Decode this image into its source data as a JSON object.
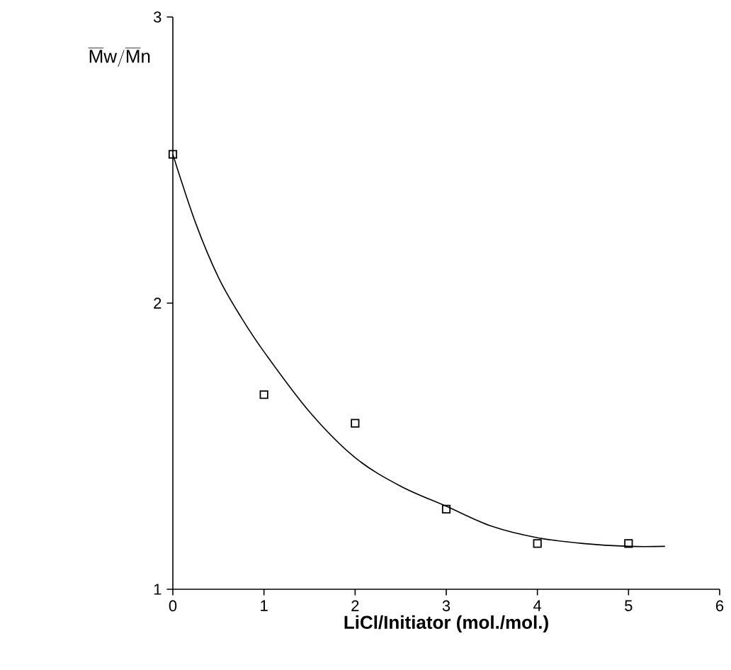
{
  "chart_data": {
    "type": "scatter",
    "xlabel": "LiCl/Initiator (mol./mol.)",
    "ylabel": "\\overline{\\mathrm{M}}\\mathrm{w}/\\overline{\\mathrm{M}}\\mathrm{n}",
    "xlim": [
      0,
      6
    ],
    "ylim": [
      1,
      3
    ],
    "xticks": [
      0,
      1,
      2,
      3,
      4,
      5,
      6
    ],
    "yticks": [
      1,
      2,
      3
    ],
    "grid": false,
    "series": [
      {
        "marker": "square",
        "color": "#000000",
        "x": [
          0,
          1,
          2,
          3,
          4,
          5
        ],
        "values": [
          2.52,
          1.68,
          1.58,
          1.28,
          1.16,
          1.16
        ]
      },
      {
        "type": "line",
        "marker": "none",
        "color": "#000000",
        "x": [
          0,
          0.25,
          0.5,
          0.75,
          1,
          1.5,
          2,
          2.5,
          3,
          3.5,
          4,
          4.5,
          5,
          5.4
        ],
        "values": [
          2.52,
          2.28,
          2.09,
          1.95,
          1.83,
          1.62,
          1.46,
          1.36,
          1.29,
          1.22,
          1.18,
          1.16,
          1.15,
          1.15
        ]
      }
    ]
  }
}
